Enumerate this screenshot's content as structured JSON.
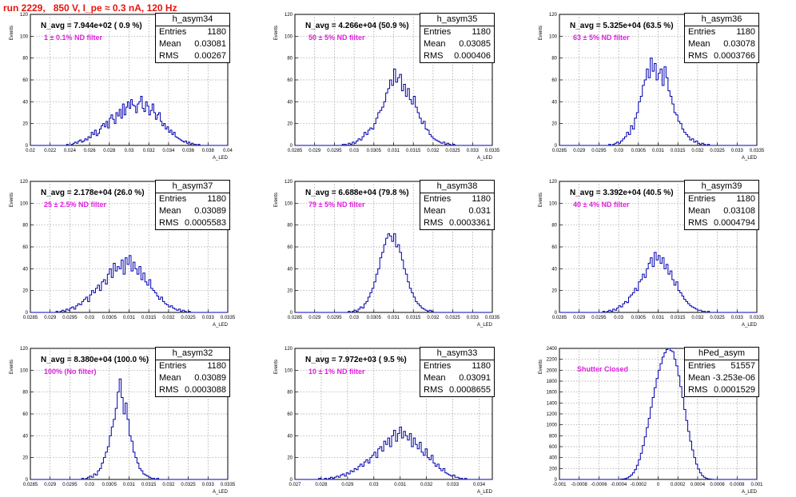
{
  "run_title": "run 2229,   850 V, I_pe ≈ 0.3 nA, 120 Hz",
  "colors": {
    "histogram": "#0000b0",
    "title": "#e8140c",
    "annotation": "#e020e0"
  },
  "chart_data": [
    {
      "type": "bar",
      "name": "h_asym34",
      "annotation": "N_avg = 7.944e+02 ( 0.9 %)",
      "filter_label": "1 ± 0.1% ND filter",
      "stats": {
        "entries": "1180",
        "mean": "0.03081",
        "rms": "0.00267"
      },
      "stat_labels": [
        "Entries",
        "Mean",
        "RMS"
      ],
      "ylabel": "Events",
      "xlabel": "A_LED",
      "xlim": [
        0.02,
        0.04
      ],
      "ylim": [
        0,
        120
      ],
      "xticks": [
        "0.02",
        "0.022",
        "0.024",
        "0.026",
        "0.028",
        "0.03",
        "0.032",
        "0.034",
        "0.036",
        "0.038",
        "0.04"
      ],
      "yticks": [
        "0",
        "20",
        "40",
        "60",
        "80",
        "100",
        "120"
      ],
      "values": [
        0,
        0,
        0,
        0,
        0,
        0,
        0,
        0,
        0,
        0,
        0,
        0,
        0,
        0,
        0,
        0,
        0,
        0,
        0,
        0,
        0,
        0,
        1,
        0,
        0,
        1,
        2,
        3,
        2,
        4,
        5,
        3,
        4,
        6,
        5,
        8,
        7,
        12,
        10,
        14,
        9,
        11,
        15,
        18,
        20,
        17,
        22,
        16,
        25,
        28,
        24,
        20,
        30,
        27,
        33,
        25,
        38,
        28,
        35,
        40,
        34,
        42,
        37,
        36,
        30,
        38,
        40,
        45,
        34,
        31,
        40,
        36,
        28,
        32,
        38,
        30,
        24,
        28,
        30,
        22,
        18,
        20,
        15,
        17,
        12,
        14,
        10,
        12,
        8,
        7,
        6,
        5,
        4,
        3,
        4,
        2,
        3,
        1,
        2,
        1,
        1,
        0,
        1,
        0,
        0,
        0,
        0,
        0,
        0,
        0,
        0,
        0,
        0,
        0,
        0,
        0,
        0,
        0,
        0,
        0
      ]
    },
    {
      "type": "bar",
      "name": "h_asym35",
      "annotation": "N_avg = 4.266e+04 (50.9 %)",
      "filter_label": "50 ± 5% ND filter",
      "stats": {
        "entries": "1180",
        "mean": "0.03085",
        "rms": "0.000406"
      },
      "stat_labels": [
        "Entries",
        "Mean",
        "RMS"
      ],
      "ylabel": "Events",
      "xlabel": "A_LED",
      "xlim": [
        0.0285,
        0.0335
      ],
      "ylim": [
        0,
        120
      ],
      "xticks": [
        "0.0285",
        "0.029",
        "0.0295",
        "0.03",
        "0.0305",
        "0.031",
        "0.0315",
        "0.032",
        "0.0325",
        "0.033",
        "0.0335"
      ],
      "yticks": [
        "0",
        "20",
        "40",
        "60",
        "80",
        "100",
        "120"
      ],
      "values": [
        0,
        0,
        0,
        0,
        0,
        0,
        0,
        0,
        0,
        0,
        0,
        0,
        0,
        0,
        0,
        0,
        0,
        0,
        0,
        0,
        0,
        0,
        0,
        0,
        1,
        1,
        0,
        2,
        1,
        3,
        2,
        4,
        6,
        5,
        8,
        12,
        10,
        14,
        16,
        15,
        20,
        25,
        30,
        32,
        35,
        40,
        48,
        52,
        60,
        55,
        70,
        58,
        62,
        65,
        50,
        56,
        45,
        52,
        42,
        38,
        45,
        35,
        30,
        25,
        20,
        22,
        15,
        14,
        10,
        8,
        6,
        5,
        4,
        3,
        2,
        3,
        1,
        2,
        1,
        0,
        1,
        0,
        0,
        0,
        0,
        0,
        0,
        0,
        0,
        0,
        0,
        0,
        0,
        0,
        0,
        0,
        0,
        0,
        0,
        0
      ]
    },
    {
      "type": "bar",
      "name": "h_asym36",
      "annotation": "N_avg = 5.325e+04 (63.5 %)",
      "filter_label": "63 ± 5% ND filter",
      "stats": {
        "entries": "1180",
        "mean": "0.03078",
        "rms": "0.0003766"
      },
      "stat_labels": [
        "Entries",
        "Mean",
        "RMS"
      ],
      "ylabel": "Events",
      "xlabel": "A_LED",
      "xlim": [
        0.0285,
        0.0335
      ],
      "ylim": [
        0,
        120
      ],
      "xticks": [
        "0.0285",
        "0.029",
        "0.0295",
        "0.03",
        "0.0305",
        "0.031",
        "0.0315",
        "0.032",
        "0.0325",
        "0.033",
        "0.0335"
      ],
      "yticks": [
        "0",
        "20",
        "40",
        "60",
        "80",
        "100",
        "120"
      ],
      "values": [
        0,
        0,
        0,
        0,
        0,
        0,
        0,
        0,
        0,
        0,
        0,
        0,
        0,
        0,
        0,
        0,
        0,
        0,
        0,
        0,
        0,
        0,
        0,
        0,
        0,
        1,
        0,
        1,
        2,
        3,
        2,
        4,
        6,
        8,
        12,
        10,
        18,
        15,
        25,
        30,
        40,
        45,
        55,
        60,
        70,
        62,
        80,
        68,
        75,
        60,
        66,
        70,
        55,
        72,
        62,
        50,
        45,
        38,
        30,
        28,
        22,
        20,
        15,
        12,
        10,
        8,
        5,
        6,
        3,
        4,
        2,
        1,
        2,
        1,
        0,
        1,
        0,
        0,
        0,
        0,
        0,
        0,
        0,
        0,
        0,
        0,
        0,
        0,
        0,
        0,
        0,
        0,
        0,
        0,
        0,
        0,
        0,
        0,
        0,
        0
      ]
    },
    {
      "type": "bar",
      "name": "h_asym37",
      "annotation": "N_avg = 2.178e+04 (26.0 %)",
      "filter_label": "25 ± 2.5% ND filter",
      "stats": {
        "entries": "1180",
        "mean": "0.03089",
        "rms": "0.0005583"
      },
      "stat_labels": [
        "Entries",
        "Mean",
        "RMS"
      ],
      "ylabel": "Events",
      "xlabel": "A_LED",
      "xlim": [
        0.0285,
        0.0335
      ],
      "ylim": [
        0,
        120
      ],
      "xticks": [
        "0.0285",
        "0.029",
        "0.0295",
        "0.03",
        "0.0305",
        "0.031",
        "0.0315",
        "0.032",
        "0.0325",
        "0.033",
        "0.0335"
      ],
      "yticks": [
        "0",
        "20",
        "40",
        "60",
        "80",
        "100",
        "120"
      ],
      "values": [
        0,
        0,
        0,
        0,
        0,
        0,
        0,
        0,
        0,
        0,
        0,
        0,
        0,
        1,
        0,
        1,
        2,
        1,
        3,
        2,
        4,
        5,
        3,
        6,
        8,
        7,
        10,
        12,
        14,
        10,
        16,
        20,
        18,
        22,
        25,
        20,
        28,
        30,
        26,
        35,
        40,
        32,
        45,
        38,
        42,
        40,
        48,
        35,
        50,
        44,
        52,
        38,
        46,
        40,
        35,
        42,
        30,
        36,
        28,
        25,
        30,
        22,
        20,
        18,
        15,
        12,
        14,
        10,
        8,
        7,
        5,
        6,
        4,
        3,
        2,
        3,
        1,
        2,
        1,
        0,
        1,
        0,
        0,
        0,
        0,
        0,
        0,
        0,
        0,
        0,
        0,
        0,
        0,
        0,
        0,
        0,
        0,
        0,
        0,
        0
      ]
    },
    {
      "type": "bar",
      "name": "h_asym38",
      "annotation": "N_avg = 6.688e+04 (79.8 %)",
      "filter_label": "79 ± 5% ND filter",
      "stats": {
        "entries": "1180",
        "mean": "0.031",
        "rms": "0.0003361"
      },
      "stat_labels": [
        "Entries",
        "Mean",
        "RMS"
      ],
      "ylabel": "Events",
      "xlabel": "A_LED",
      "xlim": [
        0.0285,
        0.0335
      ],
      "ylim": [
        0,
        120
      ],
      "xticks": [
        "0.0285",
        "0.029",
        "0.0295",
        "0.03",
        "0.0305",
        "0.031",
        "0.0315",
        "0.032",
        "0.0325",
        "0.033",
        "0.0335"
      ],
      "yticks": [
        "0",
        "20",
        "40",
        "60",
        "80",
        "100",
        "120"
      ],
      "values": [
        0,
        0,
        0,
        0,
        0,
        0,
        0,
        0,
        0,
        0,
        0,
        0,
        0,
        0,
        0,
        0,
        0,
        0,
        0,
        0,
        0,
        0,
        0,
        0,
        0,
        0,
        0,
        1,
        0,
        1,
        2,
        1,
        3,
        5,
        4,
        8,
        10,
        14,
        18,
        22,
        28,
        35,
        40,
        50,
        55,
        62,
        68,
        72,
        70,
        65,
        72,
        60,
        62,
        55,
        48,
        40,
        35,
        28,
        22,
        18,
        14,
        10,
        8,
        6,
        4,
        3,
        2,
        1,
        2,
        1,
        0,
        0,
        0,
        0,
        0,
        0,
        0,
        0,
        0,
        0,
        0,
        0,
        0,
        0,
        0,
        0,
        0,
        0,
        0,
        0,
        0,
        0,
        0,
        0,
        0,
        0,
        0,
        0,
        0,
        0
      ]
    },
    {
      "type": "bar",
      "name": "h_asym39",
      "annotation": "N_avg = 3.392e+04 (40.5 %)",
      "filter_label": "40 ± 4% ND filter",
      "stats": {
        "entries": "1180",
        "mean": "0.03108",
        "rms": "0.0004794"
      },
      "stat_labels": [
        "Entries",
        "Mean",
        "RMS"
      ],
      "ylabel": "Events",
      "xlabel": "A_LED",
      "xlim": [
        0.0285,
        0.0335
      ],
      "ylim": [
        0,
        120
      ],
      "xticks": [
        "0.0285",
        "0.029",
        "0.0295",
        "0.03",
        "0.0305",
        "0.031",
        "0.0315",
        "0.032",
        "0.0325",
        "0.033",
        "0.0335"
      ],
      "yticks": [
        "0",
        "20",
        "40",
        "60",
        "80",
        "100",
        "120"
      ],
      "values": [
        0,
        0,
        0,
        0,
        0,
        0,
        0,
        0,
        0,
        0,
        0,
        0,
        0,
        0,
        0,
        0,
        0,
        0,
        0,
        0,
        0,
        0,
        1,
        0,
        1,
        2,
        1,
        3,
        2,
        4,
        6,
        5,
        8,
        10,
        9,
        14,
        16,
        18,
        22,
        20,
        28,
        30,
        35,
        32,
        40,
        45,
        50,
        42,
        55,
        48,
        52,
        45,
        50,
        40,
        44,
        35,
        38,
        30,
        25,
        28,
        20,
        18,
        15,
        12,
        10,
        8,
        6,
        5,
        4,
        3,
        2,
        2,
        1,
        1,
        0,
        1,
        0,
        0,
        0,
        0,
        0,
        0,
        0,
        0,
        0,
        0,
        0,
        0,
        0,
        0,
        0,
        0,
        0,
        0,
        0,
        0,
        0,
        0,
        0,
        0
      ]
    },
    {
      "type": "bar",
      "name": "h_asym32",
      "annotation": "N_avg = 8.380e+04 (100.0 %)",
      "filter_label": "100% (No filter)",
      "stats": {
        "entries": "1180",
        "mean": "0.03089",
        "rms": "0.0003088"
      },
      "stat_labels": [
        "Entries",
        "Mean",
        "RMS"
      ],
      "ylabel": "Events",
      "xlabel": "A_LED",
      "xlim": [
        0.0285,
        0.0335
      ],
      "ylim": [
        0,
        120
      ],
      "xticks": [
        "0.0285",
        "0.029",
        "0.0295",
        "0.03",
        "0.0305",
        "0.031",
        "0.0315",
        "0.032",
        "0.0325",
        "0.033",
        "0.0335"
      ],
      "yticks": [
        "0",
        "20",
        "40",
        "60",
        "80",
        "100",
        "120"
      ],
      "values": [
        0,
        0,
        0,
        0,
        0,
        0,
        0,
        0,
        0,
        0,
        0,
        0,
        0,
        0,
        0,
        0,
        0,
        0,
        0,
        0,
        0,
        0,
        0,
        0,
        0,
        0,
        1,
        0,
        1,
        2,
        3,
        2,
        5,
        4,
        8,
        10,
        15,
        20,
        25,
        30,
        40,
        48,
        55,
        65,
        80,
        92,
        75,
        60,
        70,
        55,
        40,
        35,
        25,
        20,
        15,
        10,
        8,
        5,
        4,
        3,
        2,
        1,
        1,
        0,
        1,
        0,
        0,
        0,
        0,
        0,
        0,
        0,
        0,
        0,
        0,
        0,
        0,
        0,
        0,
        0,
        0,
        0,
        0,
        0,
        0,
        0,
        0,
        0,
        0,
        0,
        0,
        0,
        0,
        0,
        0,
        0,
        0,
        0,
        0,
        0
      ]
    },
    {
      "type": "bar",
      "name": "h_asym33",
      "annotation": "N_avg = 7.972e+03 ( 9.5 %)",
      "filter_label": "10 ± 1% ND filter",
      "stats": {
        "entries": "1180",
        "mean": "0.03091",
        "rms": "0.0008655"
      },
      "stat_labels": [
        "Entries",
        "Mean",
        "RMS"
      ],
      "ylabel": "Events",
      "xlabel": "A_LED",
      "xlim": [
        0.027,
        0.0345
      ],
      "ylim": [
        0,
        120
      ],
      "xticks": [
        "0.027",
        "0.028",
        "0.029",
        "0.03",
        "0.031",
        "0.032",
        "0.033",
        "0.034"
      ],
      "yticks": [
        "0",
        "20",
        "40",
        "60",
        "80",
        "100",
        "120"
      ],
      "values": [
        0,
        0,
        0,
        0,
        0,
        0,
        0,
        0,
        0,
        0,
        0,
        0,
        1,
        0,
        0,
        1,
        0,
        1,
        2,
        1,
        2,
        3,
        2,
        4,
        5,
        3,
        6,
        5,
        8,
        7,
        10,
        9,
        12,
        14,
        12,
        16,
        18,
        15,
        20,
        22,
        25,
        20,
        28,
        30,
        26,
        35,
        32,
        38,
        30,
        40,
        45,
        35,
        42,
        48,
        38,
        44,
        40,
        36,
        42,
        30,
        38,
        32,
        28,
        34,
        25,
        22,
        28,
        20,
        18,
        22,
        15,
        12,
        14,
        10,
        8,
        10,
        6,
        5,
        4,
        3,
        4,
        2,
        2,
        1,
        1,
        0,
        1,
        0,
        0,
        0,
        0,
        0,
        0,
        0,
        0,
        0,
        0,
        0,
        0,
        0
      ]
    },
    {
      "type": "bar",
      "name": "hPed_asym",
      "annotation": "",
      "filter_label": "Shutter Closed",
      "stats": {
        "entries": "51557",
        "mean": "-3.253e-06",
        "rms": "0.0001529"
      },
      "stat_labels": [
        "Entries",
        "Mean",
        "RMS"
      ],
      "ylabel": "Events",
      "xlabel": "A_LED",
      "xlim": [
        -0.001,
        0.001
      ],
      "ylim": [
        0,
        2400
      ],
      "xticks": [
        "-0.001",
        "-0.0008",
        "-0.0006",
        "-0.0004",
        "-0.0002",
        "0",
        "0.0002",
        "0.0004",
        "0.0006",
        "0.0008",
        "0.001"
      ],
      "yticks": [
        "0",
        "200",
        "400",
        "600",
        "800",
        "1000",
        "1200",
        "1400",
        "1600",
        "1800",
        "2000",
        "2200",
        "2400"
      ],
      "values": [
        0,
        0,
        0,
        0,
        0,
        0,
        0,
        0,
        0,
        0,
        0,
        0,
        0,
        0,
        0,
        0,
        0,
        0,
        0,
        0,
        0,
        0,
        0,
        0,
        0,
        0,
        0,
        0,
        0,
        0,
        0,
        5,
        10,
        15,
        30,
        50,
        80,
        120,
        180,
        260,
        360,
        480,
        620,
        780,
        950,
        1120,
        1320,
        1500,
        1680,
        1850,
        2000,
        2120,
        2240,
        2320,
        2380,
        2400,
        2360,
        2340,
        2200,
        2080,
        1900,
        1700,
        1500,
        1280,
        1080,
        880,
        700,
        540,
        400,
        280,
        190,
        120,
        70,
        40,
        20,
        10,
        5,
        2,
        0,
        0,
        0,
        0,
        0,
        0,
        0,
        0,
        0,
        0,
        0,
        0,
        0,
        0,
        0,
        0,
        0,
        0,
        0,
        0,
        0,
        0
      ]
    }
  ]
}
